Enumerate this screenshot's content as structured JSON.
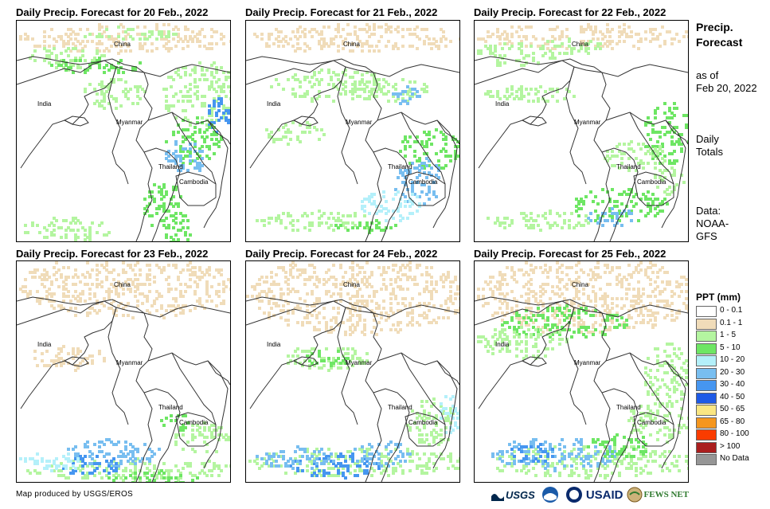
{
  "panels": [
    {
      "title": "Daily Precip. Forecast for 20 Feb., 2022"
    },
    {
      "title": "Daily Precip. Forecast for 21 Feb., 2022"
    },
    {
      "title": "Daily Precip. Forecast for 22 Feb., 2022"
    },
    {
      "title": "Daily Precip. Forecast for 23 Feb., 2022"
    },
    {
      "title": "Daily Precip. Forecast for 24 Feb., 2022"
    },
    {
      "title": "Daily Precip. Forecast for 25 Feb., 2022"
    }
  ],
  "countries": {
    "china": "China",
    "india": "India",
    "myanmar": "Myanmar",
    "thailand": "Thailand",
    "cambodia": "Cambodia"
  },
  "sidebar": {
    "title_line1": "Precip.",
    "title_line2": "Forecast",
    "asof_line1": "as of",
    "asof_line2": "Feb 20, 2022",
    "daily_line1": "Daily",
    "daily_line2": "Totals",
    "data_line1": "Data:",
    "data_line2": "NOAA-",
    "data_line3": "GFS"
  },
  "legend": {
    "title": "PPT (mm)",
    "items": [
      {
        "label": "0 - 0.1",
        "color": "#ffffff"
      },
      {
        "label": "0.1 - 1",
        "color": "#f0dcb9"
      },
      {
        "label": "1 - 5",
        "color": "#b4f5a0"
      },
      {
        "label": "5 - 10",
        "color": "#6ee664"
      },
      {
        "label": "10 - 20",
        "color": "#b4f0fa"
      },
      {
        "label": "20 - 30",
        "color": "#78bef0"
      },
      {
        "label": "30 - 40",
        "color": "#4696f0"
      },
      {
        "label": "40 - 50",
        "color": "#1e5ae6"
      },
      {
        "label": "50 - 65",
        "color": "#fae682"
      },
      {
        "label": "65 - 80",
        "color": "#f5961e"
      },
      {
        "label": "80 - 100",
        "color": "#fa3c00"
      },
      {
        "label": "> 100",
        "color": "#aa1e1e"
      },
      {
        "label": "No Data",
        "color": "#969696"
      }
    ]
  },
  "footer": {
    "credit": "Map produced by USGS/EROS"
  },
  "logos": {
    "usgs": "USGS",
    "usaid": "USAID",
    "fewsnet": "FEWS NET"
  }
}
